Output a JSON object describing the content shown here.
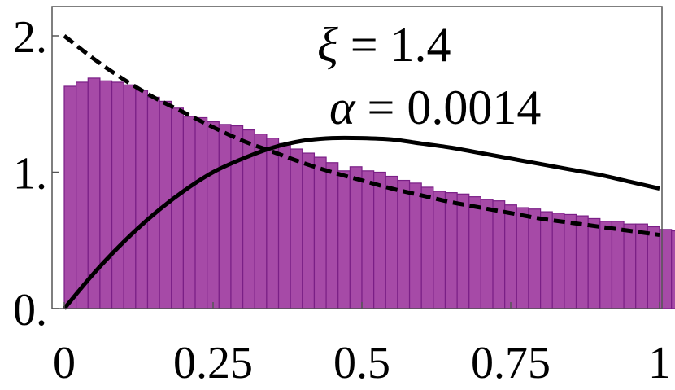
{
  "chart_data": {
    "type": "bar",
    "title": "",
    "xlabel": "",
    "ylabel": "",
    "xlim": [
      0,
      1
    ],
    "ylim": [
      0,
      2.2
    ],
    "grid": false,
    "x_ticks": [
      {
        "value": 0,
        "label": "0"
      },
      {
        "value": 0.25,
        "label": "0.25"
      },
      {
        "value": 0.5,
        "label": "0.5"
      },
      {
        "value": 0.75,
        "label": "0.75"
      },
      {
        "value": 1,
        "label": "1"
      }
    ],
    "y_ticks": [
      {
        "value": 0,
        "label": "0."
      },
      {
        "value": 1,
        "label": "1."
      },
      {
        "value": 2,
        "label": "2."
      }
    ],
    "histogram": {
      "bin_edges_start": 0,
      "bin_width": 0.02,
      "values": [
        1.63,
        1.66,
        1.69,
        1.67,
        1.66,
        1.64,
        1.6,
        1.55,
        1.52,
        1.47,
        1.41,
        1.4,
        1.37,
        1.35,
        1.34,
        1.31,
        1.28,
        1.25,
        1.21,
        1.17,
        1.14,
        1.11,
        1.07,
        1.01,
        1.04,
        1.01,
        1.0,
        0.97,
        0.94,
        0.92,
        0.89,
        0.86,
        0.85,
        0.84,
        0.82,
        0.8,
        0.79,
        0.76,
        0.74,
        0.73,
        0.71,
        0.7,
        0.69,
        0.68,
        0.66,
        0.64,
        0.64,
        0.62,
        0.62,
        0.6,
        0.58,
        0.57,
        0.56,
        0.55,
        0.54,
        0.53,
        0.53,
        0.52,
        0.51,
        0.5
      ],
      "bar_fill": "#a64aa7",
      "bar_stroke": "#7a1f86"
    },
    "curves": [
      {
        "style": "dashed",
        "color": "#000000",
        "x": [
          0,
          0.05,
          0.1,
          0.15,
          0.2,
          0.25,
          0.3,
          0.35,
          0.4,
          0.45,
          0.5,
          0.55,
          0.6,
          0.65,
          0.7,
          0.75,
          0.8,
          0.85,
          0.9,
          0.95,
          1.0
        ],
        "y": [
          2.0,
          1.83,
          1.68,
          1.55,
          1.44,
          1.33,
          1.23,
          1.15,
          1.07,
          1.0,
          0.94,
          0.88,
          0.83,
          0.78,
          0.74,
          0.7,
          0.66,
          0.63,
          0.6,
          0.57,
          0.54
        ]
      },
      {
        "style": "solid",
        "color": "#000000",
        "x": [
          0,
          0.05,
          0.1,
          0.15,
          0.2,
          0.25,
          0.3,
          0.35,
          0.4,
          0.45,
          0.5,
          0.55,
          0.6,
          0.65,
          0.7,
          0.75,
          0.8,
          0.85,
          0.9,
          0.95,
          1.0
        ],
        "y": [
          0.0,
          0.26,
          0.49,
          0.69,
          0.86,
          1.0,
          1.1,
          1.18,
          1.23,
          1.25,
          1.25,
          1.24,
          1.21,
          1.18,
          1.14,
          1.1,
          1.06,
          1.02,
          0.98,
          0.93,
          0.88
        ]
      }
    ],
    "annotations": [
      {
        "symbol": "ξ",
        "text": " = 1.4"
      },
      {
        "symbol": "α",
        "text": " = 0.0014"
      }
    ]
  }
}
